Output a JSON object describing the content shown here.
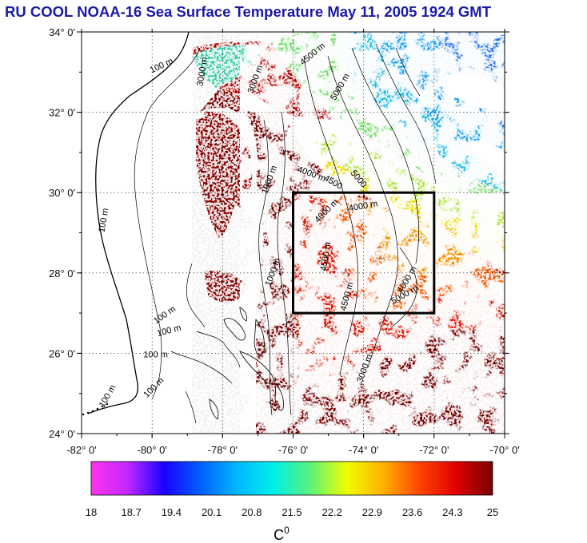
{
  "title": "RU COOL  NOAA-16 Sea Surface Temperature May 11, 2005 1924 GMT",
  "map": {
    "lon_range": [
      -82,
      -70
    ],
    "lat_range": [
      24,
      34
    ],
    "lat_ticks": [
      {
        "value": 34,
        "label": "34° 0'"
      },
      {
        "value": 32,
        "label": "32° 0'"
      },
      {
        "value": 30,
        "label": "30° 0'"
      },
      {
        "value": 28,
        "label": "28° 0'"
      },
      {
        "value": 26,
        "label": "26° 0'"
      },
      {
        "value": 24,
        "label": "24° 0'"
      }
    ],
    "lon_ticks": [
      {
        "value": -82,
        "label": "-82° 0'"
      },
      {
        "value": -80,
        "label": "-80° 0'"
      },
      {
        "value": -78,
        "label": "-78° 0'"
      },
      {
        "value": -76,
        "label": "-76° 0'"
      },
      {
        "value": -74,
        "label": "-74° 0'"
      },
      {
        "value": -72,
        "label": "-72° 0'"
      },
      {
        "value": -70,
        "label": "-70° 0'"
      }
    ],
    "study_box": {
      "lon": [
        -76,
        -72
      ],
      "lat": [
        27,
        30
      ]
    },
    "contour_labels": [
      {
        "text": "100 m",
        "lon": -79.7,
        "lat": 33.1,
        "rot": -25
      },
      {
        "text": "3000 m",
        "lon": -78.5,
        "lat": 33.0,
        "rot": -80
      },
      {
        "text": "3000 m",
        "lon": -77.0,
        "lat": 32.8,
        "rot": -70
      },
      {
        "text": "4500 m",
        "lon": -75.4,
        "lat": 33.4,
        "rot": -40
      },
      {
        "text": "5000 m",
        "lon": -74.6,
        "lat": 32.6,
        "rot": -60
      },
      {
        "text": "100 m",
        "lon": -81.3,
        "lat": 29.3,
        "rot": -80
      },
      {
        "text": "1000 m",
        "lon": -76.6,
        "lat": 30.3,
        "rot": -70
      },
      {
        "text": "4000 m",
        "lon": -75.5,
        "lat": 30.4,
        "rot": 20
      },
      {
        "text": "4500",
        "lon": -74.9,
        "lat": 30.2,
        "rot": 30
      },
      {
        "text": "5000",
        "lon": -74.2,
        "lat": 30.3,
        "rot": 50
      },
      {
        "text": "4000 m",
        "lon": -75.0,
        "lat": 29.5,
        "rot": -45
      },
      {
        "text": "4000 m",
        "lon": -74.0,
        "lat": 29.6,
        "rot": -10
      },
      {
        "text": "4500 m",
        "lon": -75.0,
        "lat": 28.4,
        "rot": -80
      },
      {
        "text": "1000 m",
        "lon": -76.5,
        "lat": 28.0,
        "rot": -70
      },
      {
        "text": "4500 m",
        "lon": -74.4,
        "lat": 27.4,
        "rot": -75
      },
      {
        "text": "4000 m",
        "lon": -72.7,
        "lat": 27.8,
        "rot": -60
      },
      {
        "text": "5000 m",
        "lon": -72.8,
        "lat": 27.4,
        "rot": -30
      },
      {
        "text": "100 m",
        "lon": -79.6,
        "lat": 26.9,
        "rot": -35
      },
      {
        "text": "100 m",
        "lon": -79.5,
        "lat": 26.5,
        "rot": -15
      },
      {
        "text": "100 m",
        "lon": -79.9,
        "lat": 25.9,
        "rot": 0
      },
      {
        "text": "100 m",
        "lon": -81.2,
        "lat": 24.9,
        "rot": -60
      },
      {
        "text": "100 m",
        "lon": -79.9,
        "lat": 25.1,
        "rot": -45
      },
      {
        "text": "3000 m",
        "lon": -73.9,
        "lat": 25.6,
        "rot": -70
      }
    ]
  },
  "colorbar": {
    "unit": "C0",
    "min": 18,
    "max": 25,
    "tick_labels": [
      "18",
      "18.7",
      "19.4",
      "20.1",
      "20.8",
      "21.5",
      "22.2",
      "22.9",
      "23.6",
      "24.3",
      "25"
    ],
    "stops": [
      "#ff33ee",
      "#c028ff",
      "#1a00ff",
      "#0060ff",
      "#00b8ff",
      "#00f0e8",
      "#5cf07a",
      "#f0ff00",
      "#ffb000",
      "#ff4400",
      "#e00000",
      "#780000"
    ]
  }
}
